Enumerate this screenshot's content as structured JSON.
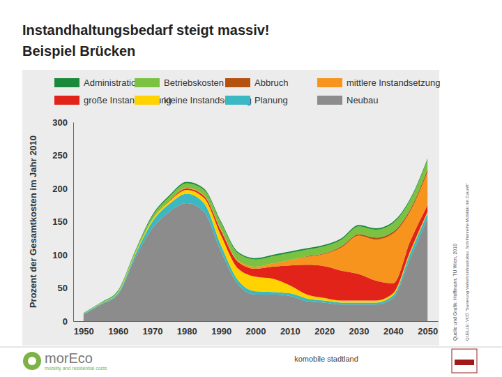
{
  "chart_data": {
    "type": "area",
    "title": "Instandhaltungsbedarf steigt massiv!",
    "subtitle": "Beispiel Brücken",
    "y_label": "Prozent der Gesamtkosten im Jahr 2010",
    "stacked": true,
    "legend": "top",
    "grid": false,
    "x": [
      1950,
      1955,
      1960,
      1965,
      1970,
      1975,
      1980,
      1985,
      1990,
      1995,
      2000,
      2005,
      2010,
      2015,
      2020,
      2025,
      2030,
      2035,
      2040,
      2045,
      2050
    ],
    "xlim": [
      1947,
      2053
    ],
    "xticks": [
      1950,
      1960,
      1970,
      1980,
      1990,
      2000,
      2010,
      2020,
      2030,
      2040,
      2050
    ],
    "ylim": [
      0,
      300
    ],
    "yticks": [
      0,
      50,
      100,
      150,
      200,
      250,
      300
    ],
    "series": [
      {
        "name": "Neubau",
        "color": "#8c8c8c",
        "values": [
          10,
          25,
          40,
          95,
          140,
          165,
          178,
          165,
          105,
          55,
          40,
          40,
          38,
          30,
          28,
          25,
          25,
          25,
          35,
          95,
          155
        ]
      },
      {
        "name": "Planung",
        "color": "#3bb8c2",
        "values": [
          1,
          1,
          2,
          5,
          10,
          12,
          14,
          13,
          9,
          6,
          5,
          4,
          4,
          4,
          3,
          3,
          3,
          3,
          4,
          8,
          8
        ]
      },
      {
        "name": "kleine Instandsetzung",
        "color": "#ffd200",
        "values": [
          0,
          0.5,
          1,
          2,
          3,
          4,
          6,
          8,
          15,
          18,
          22,
          20,
          12,
          6,
          4,
          3,
          3,
          3,
          3,
          3,
          2
        ]
      },
      {
        "name": "große Instandsetzung",
        "color": "#e2231a",
        "values": [
          0,
          0,
          0,
          0,
          0,
          1,
          2,
          3,
          7,
          10,
          12,
          18,
          30,
          45,
          48,
          45,
          40,
          30,
          15,
          15,
          10
        ]
      },
      {
        "name": "mittlere Instandsetzung",
        "color": "#f7941d",
        "values": [
          0,
          0,
          0,
          0,
          0,
          0,
          1,
          1,
          2,
          2,
          3,
          5,
          8,
          12,
          18,
          35,
          58,
          62,
          75,
          45,
          50
        ]
      },
      {
        "name": "Abbruch",
        "color": "#b5520f",
        "values": [
          0,
          0,
          0,
          0,
          0,
          0,
          0,
          0,
          0,
          0,
          0,
          0,
          0,
          1,
          1,
          2,
          2,
          3,
          3,
          3,
          4
        ]
      },
      {
        "name": "Betriebskosten",
        "color": "#7cc242",
        "values": [
          1,
          1,
          2,
          3,
          5,
          6,
          7,
          8,
          10,
          11,
          11,
          11,
          11,
          10,
          11,
          10,
          12,
          12,
          13,
          14,
          14
        ]
      },
      {
        "name": "Administration",
        "color": "#1a8a3a",
        "values": [
          0.5,
          0.5,
          1,
          1,
          2,
          2,
          2,
          2,
          2,
          2,
          2,
          2,
          2,
          2,
          2,
          2,
          2,
          2,
          2,
          2,
          2
        ]
      }
    ],
    "annotations": [
      "Quelle und Grafik: Hoffmann, TU Wien, 2010",
      "QUELLE: VCÖ \"Sanierung Verkehrsinfrastruktur, Schriftenreihe Mobilität mit Zukunft\"",
      "komobile stadtland",
      "morEco",
      "mobility and residential costs"
    ]
  }
}
